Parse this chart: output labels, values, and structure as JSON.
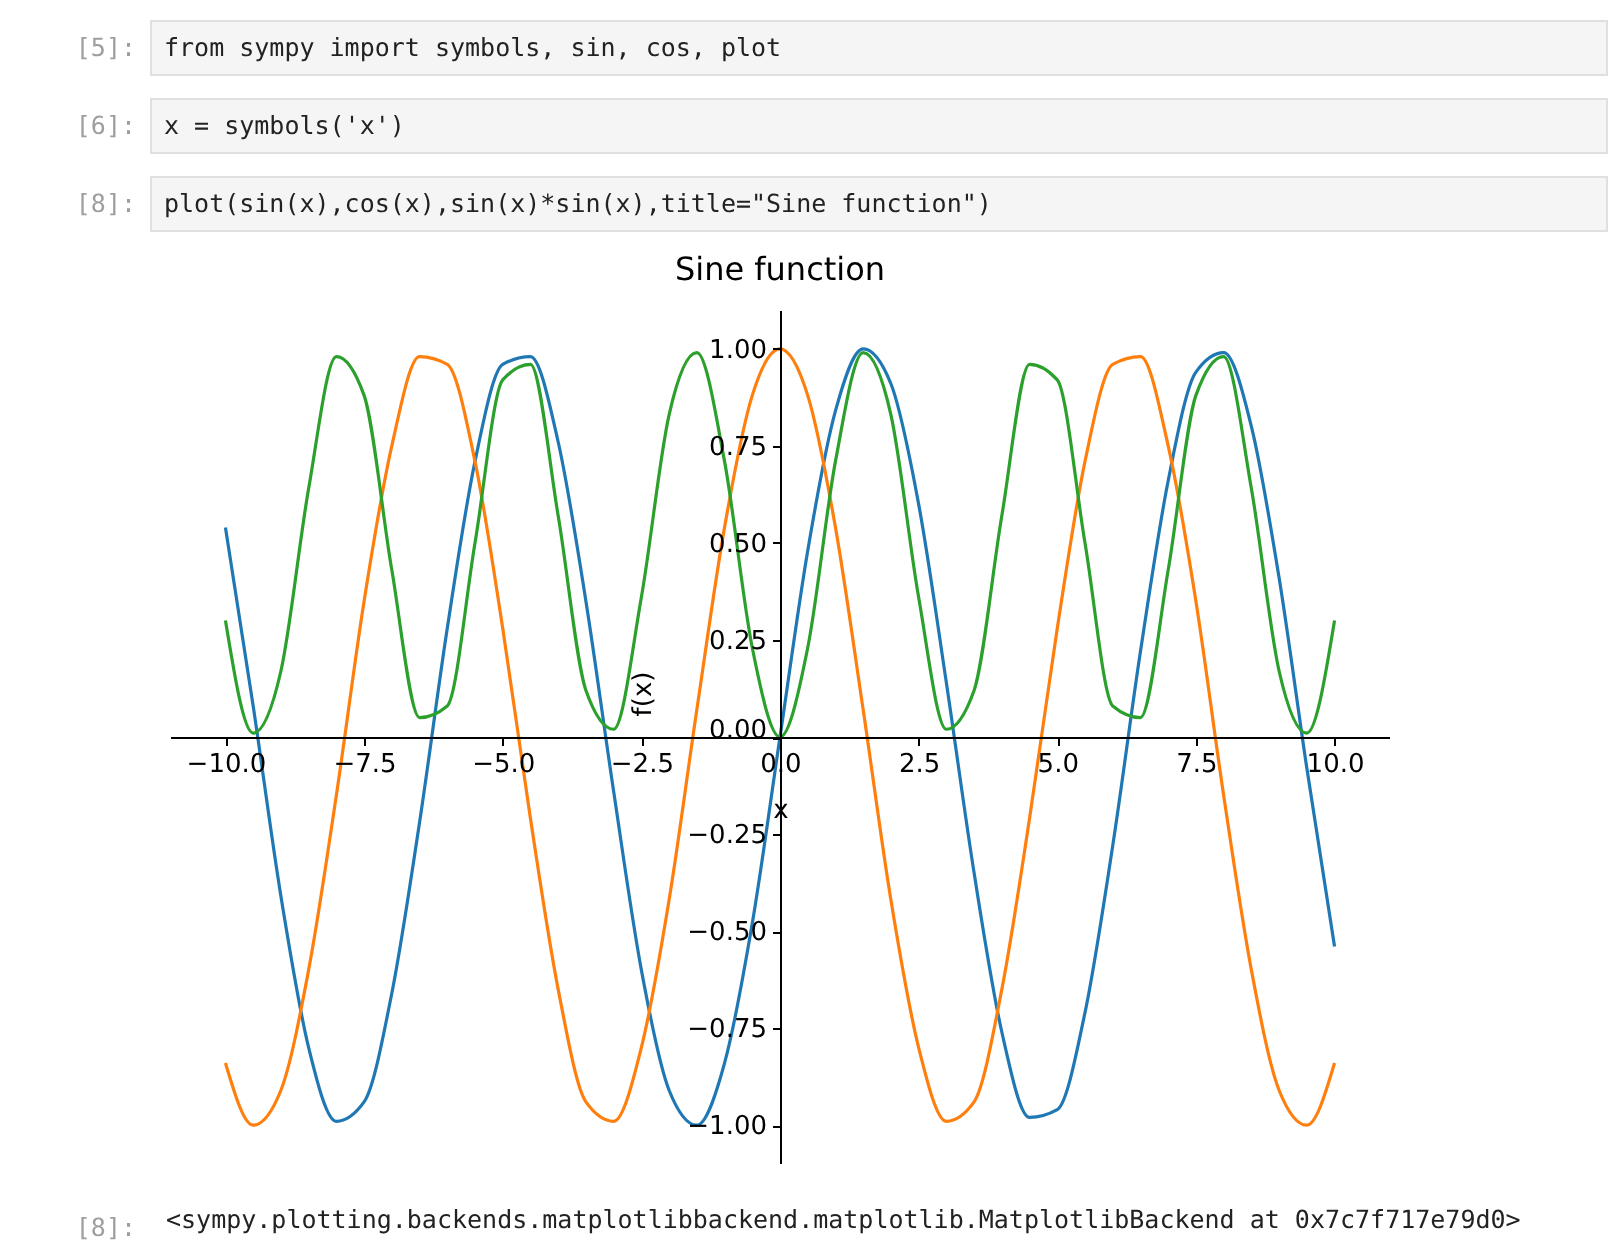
{
  "chart_data": {
    "type": "line",
    "title": "Sine function",
    "xlabel": "x",
    "ylabel": "f(x)",
    "annotations": [
      "[5]:",
      "from sympy import symbols, sin, cos, plot",
      "[6]:",
      "x = symbols('x')",
      "[8]:",
      "plot(sin(x),cos(x),sin(x)*sin(x),title=\"Sine function\")",
      "[8]:",
      "<sympy.plotting.backends.matplotlibbackend.matplotlib.MatplotlibBackend at 0x7c7f717e79d0>"
    ],
    "x": [
      -10,
      -9.5,
      -9,
      -8.5,
      -8,
      -7.5,
      -7,
      -6.5,
      -6,
      -5.5,
      -5,
      -4.5,
      -4,
      -3.5,
      -3,
      -2.5,
      -2,
      -1.5,
      -1,
      -0.5,
      0,
      0.5,
      1,
      1.5,
      2,
      2.5,
      3,
      3.5,
      4,
      4.5,
      5,
      5.5,
      6,
      6.5,
      7,
      7.5,
      8,
      8.5,
      9,
      9.5,
      10
    ],
    "series": [
      {
        "color": "#1f77b4",
        "values": [
          0.54,
          0.08,
          -0.41,
          -0.8,
          -0.99,
          -0.94,
          -0.66,
          -0.22,
          0.28,
          0.71,
          0.96,
          0.98,
          0.76,
          0.35,
          -0.14,
          -0.6,
          -0.91,
          -1.0,
          -0.84,
          -0.48,
          0,
          0.48,
          0.84,
          1.0,
          0.91,
          0.6,
          0.14,
          -0.35,
          -0.76,
          -0.98,
          -0.96,
          -0.71,
          -0.28,
          0.22,
          0.66,
          0.94,
          0.99,
          0.8,
          0.41,
          -0.08,
          -0.54
        ]
      },
      {
        "color": "#ff7f0e",
        "values": [
          -0.84,
          -1.0,
          -0.91,
          -0.6,
          -0.15,
          0.35,
          0.75,
          0.98,
          0.96,
          0.71,
          0.28,
          -0.21,
          -0.65,
          -0.94,
          -0.99,
          -0.8,
          -0.42,
          0.07,
          0.54,
          0.88,
          1,
          0.88,
          0.54,
          0.07,
          -0.42,
          -0.8,
          -0.99,
          -0.94,
          -0.65,
          -0.21,
          0.28,
          0.71,
          0.96,
          0.98,
          0.75,
          0.35,
          -0.15,
          -0.6,
          -0.91,
          -1.0,
          -0.84
        ]
      },
      {
        "color": "#2ca02c",
        "values": [
          0.3,
          0.01,
          0.17,
          0.64,
          0.98,
          0.88,
          0.43,
          0.05,
          0.08,
          0.5,
          0.92,
          0.96,
          0.57,
          0.12,
          0.02,
          0.36,
          0.83,
          0.99,
          0.71,
          0.23,
          0,
          0.23,
          0.71,
          0.99,
          0.83,
          0.36,
          0.02,
          0.12,
          0.57,
          0.96,
          0.92,
          0.5,
          0.08,
          0.05,
          0.43,
          0.88,
          0.98,
          0.64,
          0.17,
          0.01,
          0.3
        ]
      }
    ],
    "xlim": [
      -11,
      11
    ],
    "xticks": [
      {
        "value": -10,
        "label": "−10.0"
      },
      {
        "value": -7.5,
        "label": "−7.5"
      },
      {
        "value": -5,
        "label": "−5.0"
      },
      {
        "value": -2.5,
        "label": "−2.5"
      },
      {
        "value": 0,
        "label": "0.0"
      },
      {
        "value": 2.5,
        "label": "2.5"
      },
      {
        "value": 5,
        "label": "5.0"
      },
      {
        "value": 7.5,
        "label": "7.5"
      },
      {
        "value": 10,
        "label": "10.0"
      }
    ],
    "ylim": [
      -1.1,
      1.1
    ],
    "yticks": [
      {
        "value": -1,
        "label": "−1.00"
      },
      {
        "value": -0.75,
        "label": "−0.75"
      },
      {
        "value": -0.5,
        "label": "−0.50"
      },
      {
        "value": -0.25,
        "label": "−0.25"
      },
      {
        "value": 0,
        "label": "0.00"
      },
      {
        "value": 0.25,
        "label": "0.25"
      },
      {
        "value": 0.5,
        "label": "0.50"
      },
      {
        "value": 0.75,
        "label": "0.75"
      },
      {
        "value": 1,
        "label": "1.00"
      }
    ],
    "grid": false,
    "legend": false,
    "marker": "none",
    "line_style": "solid"
  }
}
